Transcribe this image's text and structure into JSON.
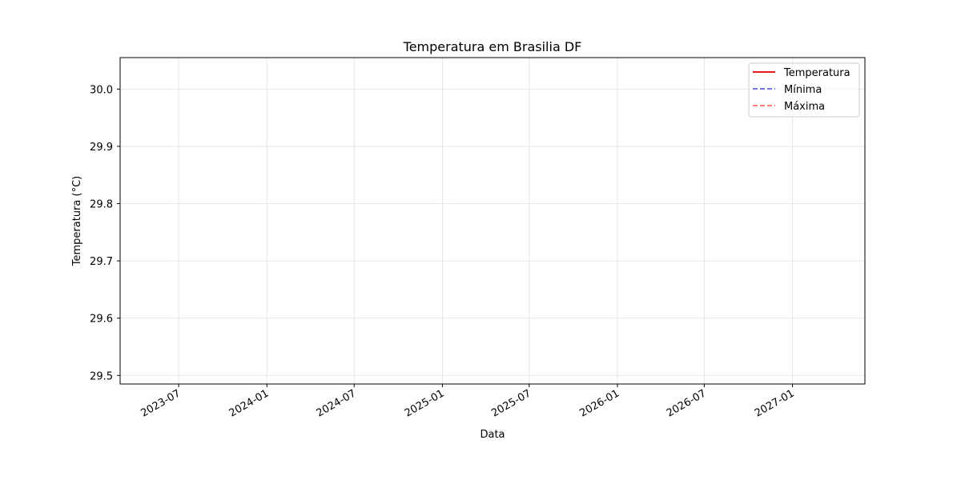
{
  "chart_data": {
    "type": "line",
    "title": "Temperatura em Brasilia DF",
    "xlabel": "Data",
    "ylabel": "Temperatura (°C)",
    "x_axis_type": "date",
    "xlim": [
      "2023-03-01",
      "2027-06-01"
    ],
    "ylim": [
      29.485,
      30.055
    ],
    "x_ticks": [
      {
        "label": "2023-07",
        "date": "2023-07-01"
      },
      {
        "label": "2024-01",
        "date": "2024-01-01"
      },
      {
        "label": "2024-07",
        "date": "2024-07-01"
      },
      {
        "label": "2025-01",
        "date": "2025-01-01"
      },
      {
        "label": "2025-07",
        "date": "2025-07-01"
      },
      {
        "label": "2026-01",
        "date": "2026-01-01"
      },
      {
        "label": "2026-07",
        "date": "2026-07-01"
      },
      {
        "label": "2027-01",
        "date": "2027-01-01"
      }
    ],
    "y_ticks": [
      {
        "label": "29.5",
        "value": 29.5
      },
      {
        "label": "29.6",
        "value": 29.6
      },
      {
        "label": "29.7",
        "value": 29.7
      },
      {
        "label": "29.8",
        "value": 29.8
      },
      {
        "label": "29.9",
        "value": 29.9
      },
      {
        "label": "30.0",
        "value": 30.0
      }
    ],
    "grid": true,
    "legend_position": "top-right",
    "series": [
      {
        "name": "Temperatura",
        "color": "#e41a1c",
        "style": "solid",
        "values": []
      },
      {
        "name": "Mínima",
        "color": "#7777dd",
        "style": "dashed",
        "values": []
      },
      {
        "name": "Máxima",
        "color": "#ff7f7f",
        "style": "dashed",
        "values": []
      }
    ]
  }
}
